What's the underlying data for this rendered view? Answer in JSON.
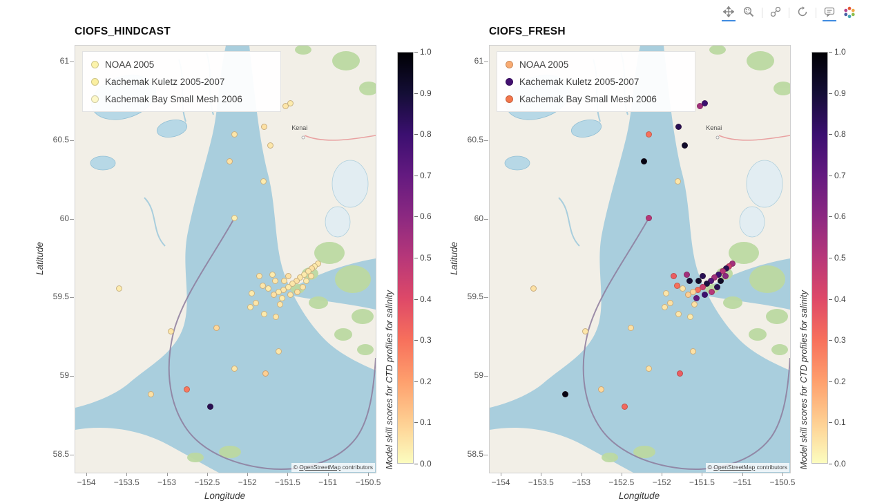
{
  "toolbar": {
    "tools": [
      {
        "name": "pan",
        "active": true
      },
      {
        "name": "box-zoom",
        "active": false
      },
      {
        "name": "link",
        "active": false
      },
      {
        "name": "reset",
        "active": false
      },
      {
        "name": "hover",
        "active": true
      }
    ],
    "logo": "bokeh-logo"
  },
  "map": {
    "kenai_label": "Kenai",
    "attribution": {
      "prefix": "© ",
      "link": "OpenStreetMap",
      "suffix": " contributors"
    }
  },
  "colorbar": {
    "title": "Model skill scores for CTD profiles for salinity",
    "tick_values": [
      0,
      0.1,
      0.2,
      0.3,
      0.4,
      0.5,
      0.6,
      0.7,
      0.8,
      0.9,
      1.0
    ],
    "tick_labels": [
      "0.0",
      "0.1",
      "0.2",
      "0.3",
      "0.4",
      "0.5",
      "0.6",
      "0.7",
      "0.8",
      "0.9",
      "1.0"
    ],
    "stops": [
      "#fcfdbf",
      "#fecf92",
      "#fe9f6d",
      "#f7705c",
      "#de4968",
      "#b73779",
      "#8c2981",
      "#641a80",
      "#3b0f70",
      "#140e36",
      "#000004"
    ]
  },
  "chart_data": [
    {
      "type": "scatter",
      "title": "CIOFS_HINDCAST",
      "xlabel": "Longitude",
      "ylabel": "Latitude",
      "xlim": [
        -154.146,
        -150.414
      ],
      "ylim": [
        58.39,
        61.105
      ],
      "x_ticks": [
        -154,
        -153.5,
        -153,
        -152.5,
        -152,
        -151.5,
        -151,
        -150.5
      ],
      "y_ticks": [
        58.5,
        59,
        59.5,
        60,
        60.5,
        61
      ],
      "legend": [
        {
          "label": "NOAA 2005",
          "color": "#fcf3ab"
        },
        {
          "label": "Kachemak Kuletz 2005-2007",
          "color": "#fbefa0"
        },
        {
          "label": "Kachemak Bay Small Mesh 2006",
          "color": "#fdf8c8"
        }
      ],
      "point_format": [
        "lon",
        "lat",
        "skill"
      ],
      "points": [
        [
          -151.53,
          60.72,
          0.05
        ],
        [
          -151.47,
          60.74,
          0.04
        ],
        [
          -151.8,
          60.59,
          0.06
        ],
        [
          -152.17,
          60.54,
          0.05
        ],
        [
          -151.72,
          60.47,
          0.05
        ],
        [
          -152.23,
          60.37,
          0.06
        ],
        [
          -151.81,
          60.24,
          0.04
        ],
        [
          -152.17,
          60.01,
          0.03
        ],
        [
          -153.6,
          59.56,
          0.04
        ],
        [
          -152.39,
          59.31,
          0.08
        ],
        [
          -152.96,
          59.29,
          0.05
        ],
        [
          -152.76,
          58.92,
          0.28
        ],
        [
          -152.47,
          58.81,
          0.85
        ],
        [
          -153.21,
          58.89,
          0.06
        ],
        [
          -152.17,
          59.05,
          0.05
        ],
        [
          -151.78,
          59.02,
          0.1
        ],
        [
          -151.62,
          59.16,
          0.05
        ],
        [
          -151.97,
          59.44,
          0.04
        ],
        [
          -151.13,
          59.72,
          0.05
        ],
        [
          -151.17,
          59.7,
          0.04
        ],
        [
          -151.21,
          59.69,
          0.06
        ],
        [
          -151.25,
          59.67,
          0.05
        ],
        [
          -151.3,
          59.65,
          0.04
        ],
        [
          -151.35,
          59.63,
          0.05
        ],
        [
          -151.4,
          59.61,
          0.06
        ],
        [
          -151.45,
          59.59,
          0.05
        ],
        [
          -151.5,
          59.57,
          0.04
        ],
        [
          -151.56,
          59.55,
          0.05
        ],
        [
          -151.62,
          59.54,
          0.04
        ],
        [
          -151.47,
          59.52,
          0.05
        ],
        [
          -151.39,
          59.54,
          0.06
        ],
        [
          -151.32,
          59.57,
          0.05
        ],
        [
          -151.58,
          59.5,
          0.04
        ],
        [
          -151.66,
          59.61,
          0.05
        ],
        [
          -151.7,
          59.65,
          0.04
        ],
        [
          -151.6,
          59.46,
          0.05
        ],
        [
          -151.68,
          59.52,
          0.06
        ],
        [
          -151.75,
          59.56,
          0.04
        ],
        [
          -151.82,
          59.58,
          0.05
        ],
        [
          -151.28,
          59.61,
          0.04
        ],
        [
          -151.22,
          59.64,
          0.05
        ],
        [
          -151.9,
          59.47,
          0.05
        ],
        [
          -151.5,
          59.64,
          0.06
        ],
        [
          -151.55,
          59.61,
          0.05
        ],
        [
          -151.8,
          59.4,
          0.04
        ],
        [
          -151.65,
          59.38,
          0.05
        ],
        [
          -151.95,
          59.53,
          0.04
        ],
        [
          -151.86,
          59.64,
          0.05
        ]
      ]
    },
    {
      "type": "scatter",
      "title": "CIOFS_FRESH",
      "xlabel": "Longitude",
      "ylabel": "Latitude",
      "xlim": [
        -154.146,
        -150.414
      ],
      "ylim": [
        58.39,
        61.105
      ],
      "x_ticks": [
        -154,
        -153.5,
        -153,
        -152.5,
        -152,
        -151.5,
        -151,
        -150.5
      ],
      "y_ticks": [
        58.5,
        59,
        59.5,
        60,
        60.5,
        61
      ],
      "legend": [
        {
          "label": "NOAA 2005",
          "color": "#f9ab72"
        },
        {
          "label": "Kachemak Kuletz 2005-2007",
          "color": "#431070"
        },
        {
          "label": "Kachemak Bay Small Mesh 2006",
          "color": "#f3764b"
        }
      ],
      "point_format": [
        "lon",
        "lat",
        "skill"
      ],
      "points": [
        [
          -151.53,
          60.72,
          0.55
        ],
        [
          -151.47,
          60.74,
          0.8
        ],
        [
          -151.8,
          60.59,
          0.85
        ],
        [
          -152.17,
          60.54,
          0.3
        ],
        [
          -151.72,
          60.47,
          0.92
        ],
        [
          -152.23,
          60.37,
          0.97
        ],
        [
          -151.81,
          60.24,
          0.05
        ],
        [
          -152.17,
          60.01,
          0.5
        ],
        [
          -153.6,
          59.56,
          0.06
        ],
        [
          -152.39,
          59.31,
          0.06
        ],
        [
          -152.96,
          59.29,
          0.05
        ],
        [
          -152.76,
          58.92,
          0.08
        ],
        [
          -152.47,
          58.81,
          0.32
        ],
        [
          -153.21,
          58.89,
          0.97
        ],
        [
          -152.17,
          59.05,
          0.06
        ],
        [
          -151.78,
          59.02,
          0.35
        ],
        [
          -151.62,
          59.16,
          0.06
        ],
        [
          -151.97,
          59.44,
          0.05
        ],
        [
          -151.13,
          59.72,
          0.55
        ],
        [
          -151.17,
          59.7,
          0.45
        ],
        [
          -151.21,
          59.69,
          0.85
        ],
        [
          -151.25,
          59.67,
          0.5
        ],
        [
          -151.3,
          59.65,
          0.8
        ],
        [
          -151.35,
          59.63,
          0.55
        ],
        [
          -151.4,
          59.61,
          0.75
        ],
        [
          -151.45,
          59.59,
          0.88
        ],
        [
          -151.5,
          59.57,
          0.45
        ],
        [
          -151.56,
          59.55,
          0.3
        ],
        [
          -151.62,
          59.54,
          0.08
        ],
        [
          -151.47,
          59.52,
          0.8
        ],
        [
          -151.39,
          59.54,
          0.5
        ],
        [
          -151.32,
          59.57,
          0.85
        ],
        [
          -151.58,
          59.5,
          0.7
        ],
        [
          -151.66,
          59.61,
          0.9
        ],
        [
          -151.7,
          59.65,
          0.55
        ],
        [
          -151.6,
          59.46,
          0.06
        ],
        [
          -151.68,
          59.52,
          0.1
        ],
        [
          -151.75,
          59.56,
          0.05
        ],
        [
          -151.82,
          59.58,
          0.3
        ],
        [
          -151.28,
          59.61,
          0.93
        ],
        [
          -151.22,
          59.64,
          0.6
        ],
        [
          -151.9,
          59.47,
          0.06
        ],
        [
          -151.5,
          59.64,
          0.85
        ],
        [
          -151.55,
          59.61,
          0.92
        ],
        [
          -151.8,
          59.4,
          0.05
        ],
        [
          -151.65,
          59.38,
          0.04
        ],
        [
          -151.95,
          59.53,
          0.05
        ],
        [
          -151.86,
          59.64,
          0.35
        ]
      ]
    }
  ]
}
